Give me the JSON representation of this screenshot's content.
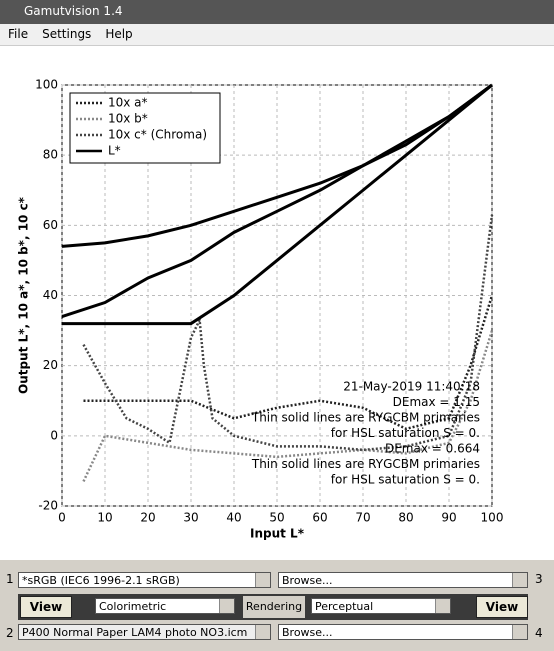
{
  "window": {
    "title": "Gamutvision 1.4",
    "menu": [
      "File",
      "Settings",
      "Help"
    ]
  },
  "chart_data": {
    "type": "line",
    "xlabel": "Input L*",
    "ylabel": "Output L*, 10 a*, 10 b*, 10 c*",
    "xlim": [
      0,
      100
    ],
    "xticks": [
      0,
      10,
      20,
      30,
      40,
      50,
      60,
      70,
      80,
      90,
      100
    ],
    "ylim": [
      -20,
      100
    ],
    "yticks": [
      -20,
      0,
      20,
      40,
      60,
      80,
      100
    ],
    "grid": true,
    "legend": "upper left",
    "series": [
      {
        "name": "10x a*",
        "color": "#222222",
        "style": "dotted",
        "x": [
          5,
          10,
          20,
          30,
          40,
          50,
          60,
          70,
          80,
          90,
          95,
          100
        ],
        "values": [
          10,
          10,
          10,
          10,
          5,
          8,
          10,
          8,
          2,
          5,
          20,
          40
        ]
      },
      {
        "name": "10x b*",
        "color": "#888888",
        "style": "dotted",
        "x": [
          5,
          10,
          20,
          30,
          40,
          50,
          60,
          70,
          80,
          90,
          95,
          100
        ],
        "values": [
          -13,
          0,
          -2,
          -4,
          -5,
          -6,
          -5,
          -4,
          -5,
          -2,
          10,
          30
        ]
      },
      {
        "name": "10x c* (Chroma)",
        "color": "#444444",
        "style": "dotted",
        "x": [
          5,
          10,
          15,
          20,
          25,
          30,
          32,
          33,
          35,
          40,
          50,
          60,
          70,
          80,
          90,
          95,
          100
        ],
        "values": [
          26,
          15,
          5,
          2,
          -2,
          28,
          33,
          20,
          5,
          0,
          -3,
          -3,
          -4,
          -3,
          0,
          15,
          63
        ]
      },
      {
        "name": "L*",
        "color": "#000000",
        "style": "solid",
        "x": [
          0,
          10,
          20,
          30,
          40,
          50,
          60,
          70,
          80,
          90,
          100
        ],
        "values": [
          32,
          32,
          32,
          32,
          40,
          50,
          60,
          70,
          80,
          90,
          100
        ]
      },
      {
        "color": "#000000",
        "style": "solid",
        "x": [
          0,
          10,
          20,
          30,
          40,
          50,
          60,
          70,
          80,
          90,
          100
        ],
        "values": [
          34,
          38,
          45,
          50,
          58,
          64,
          70,
          77,
          84,
          91,
          100
        ]
      },
      {
        "color": "#000000",
        "style": "solid",
        "x": [
          0,
          10,
          20,
          30,
          40,
          50,
          60,
          70,
          80,
          90,
          100
        ],
        "values": [
          54,
          55,
          57,
          60,
          64,
          68,
          72,
          77,
          83,
          91,
          100
        ]
      }
    ],
    "annotations": [
      "21-May-2019 11:40:18",
      "DEmax = 1.15",
      "Thin solid lines are RYGCBM primaries",
      "for HSL saturation S = 0.",
      "DEmax = 0.664",
      "Thin solid lines are RYGCBM primaries",
      "for HSL saturation S = 0."
    ]
  },
  "controls": {
    "n1": "1",
    "n2": "2",
    "n3": "3",
    "n4": "4",
    "profile1": "*sRGB   (IEC6 1996-2.1 sRGB)",
    "profile2": "P400 Normal Paper LAM4 photo NO3.icm",
    "browse3": "Browse...",
    "browse4": "Browse...",
    "view": "View",
    "rendering_label": "Rendering",
    "rendering1": "Colorimetric",
    "rendering2": "Perceptual"
  }
}
